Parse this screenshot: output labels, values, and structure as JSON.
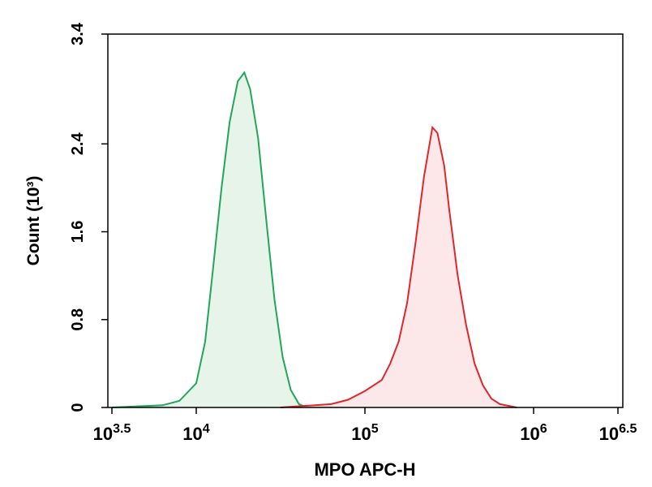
{
  "chart_data": {
    "type": "histogram-line",
    "x_label": "MPO APC-H",
    "y_label": "Count (10³)",
    "xscale": "log",
    "xlim": [
      3162.28,
      3162278
    ],
    "xticks": [
      {
        "value": 3162.28,
        "label": "10",
        "sup": "3.5"
      },
      {
        "value": 10000,
        "label": "10",
        "sup": "4"
      },
      {
        "value": 100000,
        "label": "10",
        "sup": "5"
      },
      {
        "value": 1000000,
        "label": "10",
        "sup": "6"
      },
      {
        "value": 3162278,
        "label": "10",
        "sup": "6.5"
      }
    ],
    "ylim": [
      0,
      3.4
    ],
    "yticks": [
      0,
      0.8,
      1.6,
      2.4,
      3.4
    ],
    "series": [
      {
        "color": "#22a65a",
        "fill": "#e6f4ea",
        "x": [
          3162,
          6310,
          7943,
          10000,
          11298,
          12589,
          14125,
          15776,
          17620,
          19275,
          20845,
          23281,
          26002,
          29107,
          32509,
          36308,
          40644,
          45394
        ],
        "values": [
          0,
          0.02,
          0.06,
          0.22,
          0.6,
          1.27,
          2.0,
          2.6,
          2.97,
          3.05,
          2.9,
          2.45,
          1.71,
          0.98,
          0.46,
          0.16,
          0.03,
          0
        ]
      },
      {
        "color": "#e0252b",
        "fill": "#fce8e8",
        "x": [
          31623,
          63096,
          79433,
          100000,
          125893,
          141254,
          158489,
          177828,
          199526,
          223872,
          251189,
          269153,
          295121,
          316228,
          354813,
          398107,
          446684,
          501187,
          562341,
          630957,
          794328
        ],
        "values": [
          0,
          0.03,
          0.07,
          0.15,
          0.25,
          0.4,
          0.6,
          0.95,
          1.5,
          2.1,
          2.55,
          2.5,
          2.2,
          1.8,
          1.2,
          0.75,
          0.4,
          0.2,
          0.08,
          0.03,
          0
        ]
      }
    ]
  }
}
